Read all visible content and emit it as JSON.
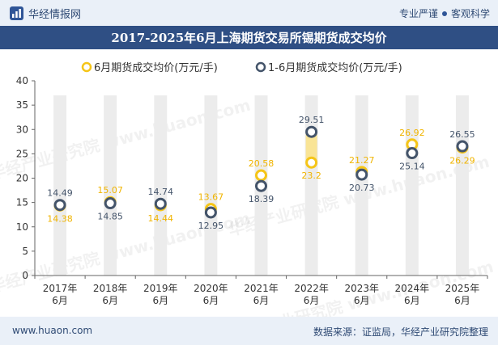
{
  "header": {
    "brand_name": "华经情报网",
    "slogan_left": "专业严谨",
    "slogan_right": "客观科学"
  },
  "title": "2017-2025年6月上海期货交易所锡期货成交均价",
  "footer": {
    "website": "www.huaon.com",
    "source": "数据来源：证监局，华经产业研究院整理"
  },
  "colors": {
    "series1": "#f5c518",
    "series2": "#44546a",
    "column_bg": "#ececec",
    "band_fill": "#fde27a",
    "title_bar": "#2f4f84",
    "header_bg": "#eaf0f8"
  },
  "chart_data": {
    "type": "dot-plot",
    "title": "2017-2025年6月上海期货交易所锡期货成交均价",
    "categories": [
      "2017年\n6月",
      "2018年\n6月",
      "2019年\n6月",
      "2020年\n6月",
      "2021年\n6月",
      "2022年\n6月",
      "2023年\n6月",
      "2024年\n6月",
      "2025年\n6月"
    ],
    "series": [
      {
        "name": "6月期货成交均价(万元/手)",
        "values": [
          14.38,
          15.07,
          14.44,
          13.67,
          20.58,
          23.2,
          21.27,
          26.92,
          26.29
        ]
      },
      {
        "name": "1-6月期货成交均价(万元/手)",
        "values": [
          14.49,
          14.85,
          14.74,
          12.95,
          18.39,
          29.51,
          20.73,
          25.14,
          26.55
        ]
      }
    ],
    "ylim": [
      0,
      40
    ],
    "yticks": [
      0,
      5,
      10,
      15,
      20,
      25,
      30,
      35,
      40
    ],
    "legend_position": "top-center",
    "grid": false,
    "watermark": "华经产业研究院 www.huaon.com"
  }
}
